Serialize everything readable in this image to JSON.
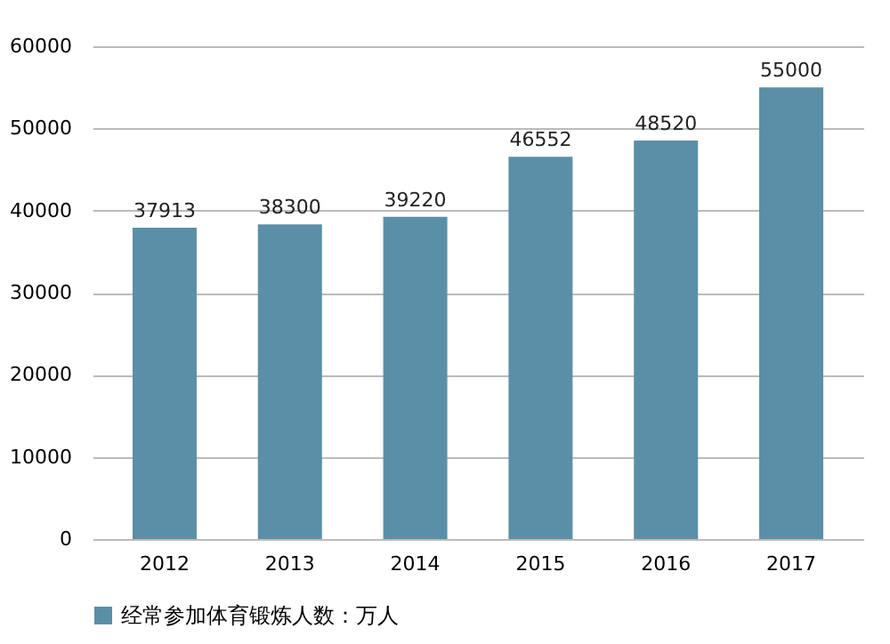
{
  "chart_data": {
    "type": "bar",
    "categories": [
      "2012",
      "2013",
      "2014",
      "2015",
      "2016",
      "2017"
    ],
    "series": [
      {
        "name": "经常参加体育锻炼人数：万人",
        "color": "#5b8fa8",
        "values": [
          37913,
          38300,
          39220,
          46552,
          48520,
          55000
        ]
      }
    ],
    "ylim": [
      0,
      60000
    ],
    "yticks": [
      0,
      10000,
      20000,
      30000,
      40000,
      50000,
      60000
    ],
    "grid": "y",
    "legend": "bottom",
    "data_labels": true
  }
}
